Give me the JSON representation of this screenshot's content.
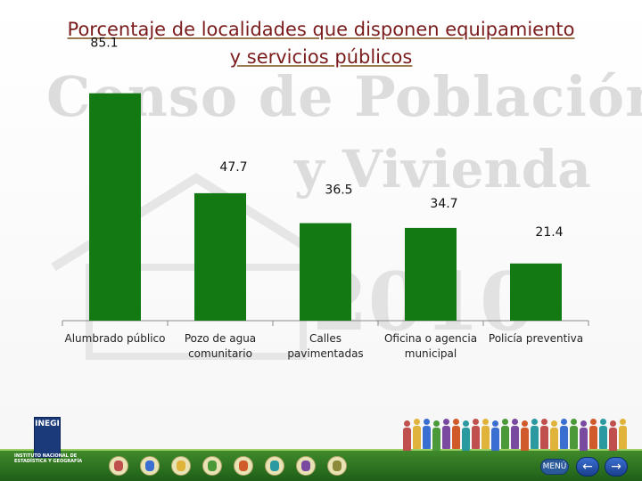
{
  "title_line1": "Porcentaje de localidades que disponen equipamiento",
  "title_line2": "y servicios públicos",
  "watermark": {
    "line1": "Censo de Población",
    "line2": "y Vivienda"
  },
  "chart_data": {
    "type": "bar",
    "title": "Porcentaje de localidades que disponen equipamiento y servicios públicos",
    "categories": [
      "Alumbrado público",
      "Pozo de agua comunitario",
      "Calles pavimentadas",
      "Oficina o agencia municipal",
      "Policía preventiva"
    ],
    "category_lines": [
      [
        "Alumbrado público"
      ],
      [
        "Pozo de agua",
        "comunitario"
      ],
      [
        "Calles",
        "pavimentadas"
      ],
      [
        "Oficina o agencia",
        "municipal"
      ],
      [
        "Policía preventiva"
      ]
    ],
    "values": [
      85.1,
      47.7,
      36.5,
      34.7,
      21.4
    ],
    "value_labels": [
      "85.1",
      "47.7",
      "36.5",
      "34.7",
      "21.4"
    ],
    "xlabel": "",
    "ylabel": "",
    "ylim": [
      0,
      100
    ],
    "grid": false,
    "bar_color": "#137a13"
  },
  "footer": {
    "logo_text": "INEGI",
    "institute_text": "INSTITUTO NACIONAL DE ESTADÍSTICA Y GEOGRAFÍA",
    "menu_label": "MENÚ",
    "back_arrow": "←",
    "forward_arrow": "→",
    "band_color": "#2d7222"
  }
}
